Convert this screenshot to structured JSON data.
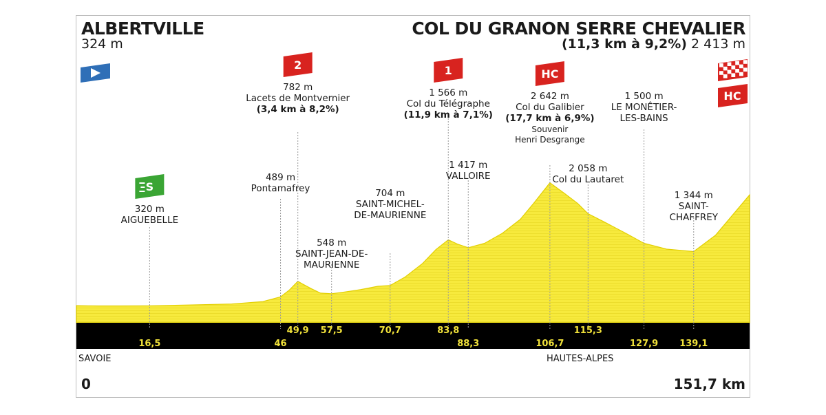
{
  "start": {
    "name": "ALBERTVILLE",
    "altitude": "324 m",
    "km_label": "0"
  },
  "finish": {
    "name": "COL DU GRANON SERRE CHEVALIER",
    "climb": "(11,3 km à 9,2%)",
    "altitude": "2 413 m",
    "km_label": "151,7 km",
    "category": "HC"
  },
  "regions": [
    {
      "name": "SAVOIE",
      "km": 0
    },
    {
      "name": "HAUTES-ALPES",
      "km": 106.7
    }
  ],
  "colors": {
    "profile_fill": "#f7ea3d",
    "profile_edge": "#e2cf00",
    "band": "#000000",
    "band_text": "#f1e23a",
    "climb_badge": "#d8231f",
    "sprint_badge": "#3aa534",
    "start_flag": "#2f6fb7"
  },
  "icons": {
    "start": "start-arrow-flag-icon",
    "finish": "checkered-flag-icon",
    "sprint": "green-sprint-icon"
  },
  "chart_data": {
    "type": "area",
    "title": "",
    "xlabel": "",
    "ylabel": "",
    "x_unit": "km",
    "y_unit": "m",
    "xlim": [
      0,
      151.7
    ],
    "grid": false,
    "series": [
      {
        "x": [
          0,
          5,
          10,
          16.5,
          25,
          35,
          42,
          46,
          48,
          49.9,
          51,
          53,
          55,
          57.5,
          60,
          64,
          68,
          70.7,
          74,
          78,
          81,
          83.8,
          86,
          88.3,
          92,
          96,
          100,
          103,
          106.7,
          110,
          113,
          115.3,
          119,
          124,
          127.9,
          133,
          139.1,
          144,
          151.7
        ],
        "y": [
          324,
          318,
          318,
          320,
          335,
          355,
          400,
          489,
          620,
          782,
          730,
          640,
          560,
          548,
          575,
          625,
          690,
          704,
          860,
          1120,
          1380,
          1566,
          1480,
          1417,
          1500,
          1690,
          1950,
          2250,
          2642,
          2440,
          2250,
          2058,
          1900,
          1680,
          1500,
          1390,
          1344,
          1650,
          2413
        ]
      }
    ],
    "markers": [
      {
        "km": 16.5,
        "alt": 320,
        "alt_label": "320 m",
        "name": "AIGUEBELLE",
        "badge": "sprint",
        "badge_label": "S"
      },
      {
        "km": 46,
        "alt": 489,
        "alt_label": "489 m",
        "name": "Pontamafrey"
      },
      {
        "km": 49.9,
        "alt": 782,
        "alt_label": "782 m",
        "name": "Lacets de Montvernier",
        "climb": "(3,4 km à 8,2%)",
        "badge": "cat",
        "badge_label": "2"
      },
      {
        "km": 57.5,
        "alt": 548,
        "alt_label": "548 m",
        "name": "SAINT-JEAN-DE-\nMAURIENNE"
      },
      {
        "km": 70.7,
        "alt": 704,
        "alt_label": "704 m",
        "name": "SAINT-MICHEL-\nDE-MAURIENNE"
      },
      {
        "km": 83.8,
        "alt": 1566,
        "alt_label": "1 566 m",
        "name": "Col du Télégraphe",
        "climb": "(11,9 km à 7,1%)",
        "badge": "cat",
        "badge_label": "1"
      },
      {
        "km": 88.3,
        "alt": 1417,
        "alt_label": "1 417 m",
        "name": "VALLOIRE"
      },
      {
        "km": 106.7,
        "alt": 2642,
        "alt_label": "2 642 m",
        "name": "Col du Galibier",
        "climb": "(17,7 km à 6,9%)",
        "extra": "Souvenir\nHenri Desgrange",
        "badge": "cat",
        "badge_label": "HC"
      },
      {
        "km": 115.3,
        "alt": 2058,
        "alt_label": "2 058 m",
        "name": "Col du Lautaret"
      },
      {
        "km": 127.9,
        "alt": 1500,
        "alt_label": "1 500 m",
        "name": "LE MONÊTIER-\nLES-BAINS"
      },
      {
        "km": 139.1,
        "alt": 1344,
        "alt_label": "1 344 m",
        "name": "SAINT-\nCHAFFREY"
      }
    ],
    "km_labels": [
      {
        "label": "16,5",
        "km": 16.5,
        "row": "bottom"
      },
      {
        "label": "46",
        "km": 46,
        "row": "bottom"
      },
      {
        "label": "49,9",
        "km": 49.9,
        "row": "top"
      },
      {
        "label": "57,5",
        "km": 57.5,
        "row": "top"
      },
      {
        "label": "70,7",
        "km": 70.7,
        "row": "top"
      },
      {
        "label": "83,8",
        "km": 83.8,
        "row": "top"
      },
      {
        "label": "88,3",
        "km": 88.3,
        "row": "bottom"
      },
      {
        "label": "106,7",
        "km": 106.7,
        "row": "bottom"
      },
      {
        "label": "115,3",
        "km": 115.3,
        "row": "top"
      },
      {
        "label": "127,9",
        "km": 127.9,
        "row": "bottom"
      },
      {
        "label": "139,1",
        "km": 139.1,
        "row": "bottom"
      }
    ]
  }
}
